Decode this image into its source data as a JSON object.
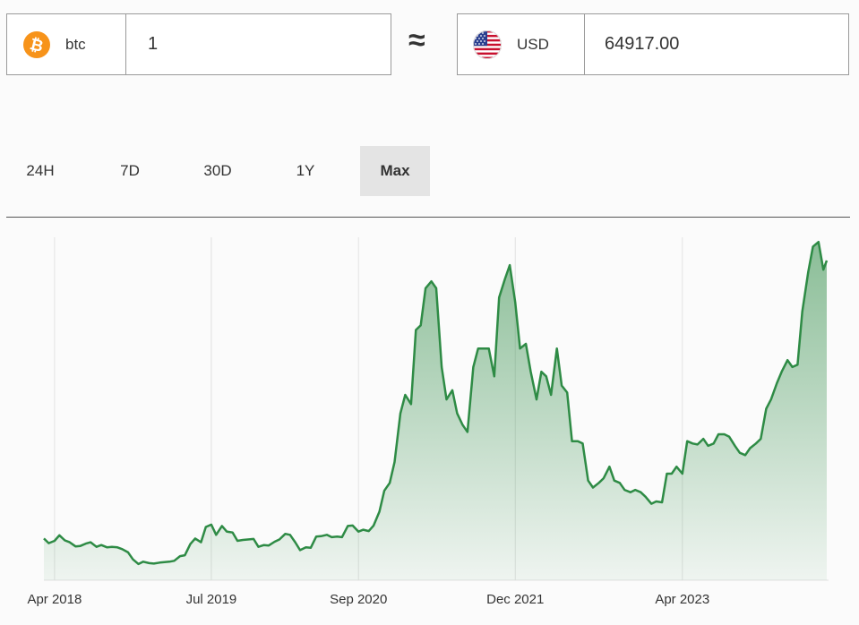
{
  "converter": {
    "from": {
      "currency": "btc",
      "icon": "bitcoin-icon",
      "value": "1"
    },
    "approx_symbol": "≈",
    "to": {
      "currency": "USD",
      "icon": "us-flag-icon",
      "value": "64917.00"
    }
  },
  "tabs": [
    {
      "label": "24H",
      "active": false
    },
    {
      "label": "7D",
      "active": false
    },
    {
      "label": "30D",
      "active": false
    },
    {
      "label": "1Y",
      "active": false
    },
    {
      "label": "Max",
      "active": true
    }
  ],
  "colors": {
    "line": "#2e8b45",
    "bitcoin": "#f7931a",
    "active_tab": "#e4e4e4"
  },
  "chart_data": {
    "type": "area",
    "x_tick_labels": [
      "Apr 2018",
      "Jul 2019",
      "Sep 2020",
      "Dec 2021",
      "Apr 2023"
    ],
    "x_tick_dates": [
      "2018-04-01",
      "2019-07-01",
      "2020-09-01",
      "2021-12-01",
      "2023-04-01"
    ],
    "ylim": [
      0,
      74000
    ],
    "grid": "vertical",
    "series": [
      {
        "points": [
          [
            "2018-03-01",
            9000
          ],
          [
            "2018-03-15",
            8000
          ],
          [
            "2018-04-01",
            8500
          ],
          [
            "2018-04-15",
            9700
          ],
          [
            "2018-05-01",
            8600
          ],
          [
            "2018-05-15",
            8200
          ],
          [
            "2018-06-01",
            7300
          ],
          [
            "2018-06-15",
            7400
          ],
          [
            "2018-07-01",
            7900
          ],
          [
            "2018-07-15",
            8200
          ],
          [
            "2018-08-01",
            7200
          ],
          [
            "2018-08-15",
            7600
          ],
          [
            "2018-09-01",
            7100
          ],
          [
            "2018-09-15",
            7200
          ],
          [
            "2018-10-01",
            7100
          ],
          [
            "2018-10-15",
            6700
          ],
          [
            "2018-11-01",
            6000
          ],
          [
            "2018-11-15",
            4500
          ],
          [
            "2018-12-01",
            3500
          ],
          [
            "2018-12-15",
            4000
          ],
          [
            "2019-01-01",
            3700
          ],
          [
            "2019-01-15",
            3600
          ],
          [
            "2019-02-01",
            3800
          ],
          [
            "2019-02-15",
            3900
          ],
          [
            "2019-03-01",
            4000
          ],
          [
            "2019-03-15",
            4200
          ],
          [
            "2019-04-01",
            5200
          ],
          [
            "2019-04-15",
            5400
          ],
          [
            "2019-05-01",
            7800
          ],
          [
            "2019-05-15",
            9000
          ],
          [
            "2019-06-01",
            8200
          ],
          [
            "2019-06-15",
            11500
          ],
          [
            "2019-07-01",
            12000
          ],
          [
            "2019-07-15",
            9800
          ],
          [
            "2019-08-01",
            11700
          ],
          [
            "2019-08-15",
            10500
          ],
          [
            "2019-09-01",
            10300
          ],
          [
            "2019-09-15",
            8500
          ],
          [
            "2019-10-01",
            8700
          ],
          [
            "2019-10-15",
            8800
          ],
          [
            "2019-11-01",
            8900
          ],
          [
            "2019-11-15",
            7200
          ],
          [
            "2019-12-01",
            7600
          ],
          [
            "2019-12-15",
            7500
          ],
          [
            "2020-01-01",
            8300
          ],
          [
            "2020-01-15",
            8800
          ],
          [
            "2020-02-01",
            10000
          ],
          [
            "2020-02-15",
            9800
          ],
          [
            "2020-03-01",
            8200
          ],
          [
            "2020-03-15",
            6500
          ],
          [
            "2020-04-01",
            7100
          ],
          [
            "2020-04-15",
            7000
          ],
          [
            "2020-05-01",
            9400
          ],
          [
            "2020-05-15",
            9500
          ],
          [
            "2020-06-01",
            9800
          ],
          [
            "2020-06-15",
            9300
          ],
          [
            "2020-07-01",
            9400
          ],
          [
            "2020-07-15",
            9300
          ],
          [
            "2020-08-01",
            11700
          ],
          [
            "2020-08-15",
            11800
          ],
          [
            "2020-09-01",
            10500
          ],
          [
            "2020-09-15",
            10900
          ],
          [
            "2020-10-01",
            10600
          ],
          [
            "2020-10-15",
            11800
          ],
          [
            "2020-11-01",
            14800
          ],
          [
            "2020-11-15",
            19300
          ],
          [
            "2020-12-01",
            21000
          ],
          [
            "2020-12-15",
            25500
          ],
          [
            "2021-01-01",
            36000
          ],
          [
            "2021-01-15",
            40000
          ],
          [
            "2021-02-01",
            38000
          ],
          [
            "2021-02-15",
            54000
          ],
          [
            "2021-03-01",
            55000
          ],
          [
            "2021-03-15",
            63000
          ],
          [
            "2021-04-01",
            64500
          ],
          [
            "2021-04-15",
            63000
          ],
          [
            "2021-05-01",
            46000
          ],
          [
            "2021-05-15",
            39000
          ],
          [
            "2021-06-01",
            41000
          ],
          [
            "2021-06-15",
            36000
          ],
          [
            "2021-07-01",
            33500
          ],
          [
            "2021-07-15",
            32000
          ],
          [
            "2021-08-01",
            46000
          ],
          [
            "2021-08-15",
            50000
          ],
          [
            "2021-09-01",
            50000
          ],
          [
            "2021-09-15",
            50000
          ],
          [
            "2021-10-01",
            44000
          ],
          [
            "2021-10-15",
            61000
          ],
          [
            "2021-11-01",
            65000
          ],
          [
            "2021-11-15",
            68000
          ],
          [
            "2021-12-01",
            60000
          ],
          [
            "2021-12-15",
            50000
          ],
          [
            "2022-01-01",
            51000
          ],
          [
            "2022-01-15",
            45000
          ],
          [
            "2022-02-01",
            39000
          ],
          [
            "2022-02-15",
            45000
          ],
          [
            "2022-03-01",
            44000
          ],
          [
            "2022-03-15",
            40000
          ],
          [
            "2022-04-01",
            50000
          ],
          [
            "2022-04-15",
            42000
          ],
          [
            "2022-05-01",
            40500
          ],
          [
            "2022-05-15",
            30000
          ],
          [
            "2022-06-01",
            30000
          ],
          [
            "2022-06-15",
            29500
          ],
          [
            "2022-07-01",
            21500
          ],
          [
            "2022-07-15",
            20000
          ],
          [
            "2022-08-01",
            21000
          ],
          [
            "2022-08-15",
            22000
          ],
          [
            "2022-09-01",
            24500
          ],
          [
            "2022-09-15",
            21500
          ],
          [
            "2022-10-01",
            21000
          ],
          [
            "2022-10-15",
            19500
          ],
          [
            "2022-11-01",
            19000
          ],
          [
            "2022-11-15",
            19500
          ],
          [
            "2022-12-01",
            19000
          ],
          [
            "2022-12-15",
            18000
          ],
          [
            "2023-01-01",
            16500
          ],
          [
            "2023-01-15",
            17000
          ],
          [
            "2023-02-01",
            16800
          ],
          [
            "2023-02-15",
            23000
          ],
          [
            "2023-03-01",
            23000
          ],
          [
            "2023-03-15",
            24500
          ],
          [
            "2023-04-01",
            23000
          ],
          [
            "2023-04-15",
            30000
          ],
          [
            "2023-05-01",
            29500
          ],
          [
            "2023-05-15",
            29300
          ],
          [
            "2023-06-01",
            30500
          ],
          [
            "2023-06-15",
            29000
          ],
          [
            "2023-07-01",
            29500
          ],
          [
            "2023-07-15",
            31500
          ],
          [
            "2023-08-01",
            31500
          ],
          [
            "2023-08-15",
            31000
          ],
          [
            "2023-09-01",
            29000
          ],
          [
            "2023-09-15",
            27500
          ],
          [
            "2023-10-01",
            27000
          ],
          [
            "2023-10-15",
            28500
          ],
          [
            "2023-11-01",
            29500
          ],
          [
            "2023-11-15",
            30500
          ],
          [
            "2023-12-01",
            37000
          ],
          [
            "2023-12-15",
            39000
          ],
          [
            "2024-01-01",
            42500
          ],
          [
            "2024-01-15",
            45000
          ],
          [
            "2024-02-01",
            47500
          ],
          [
            "2024-02-15",
            46000
          ],
          [
            "2024-03-01",
            46500
          ],
          [
            "2024-03-15",
            58000
          ],
          [
            "2024-04-01",
            66500
          ],
          [
            "2024-04-15",
            72000
          ],
          [
            "2024-05-01",
            73000
          ],
          [
            "2024-05-15",
            67000
          ],
          [
            "2024-05-25",
            69000
          ]
        ]
      }
    ]
  }
}
